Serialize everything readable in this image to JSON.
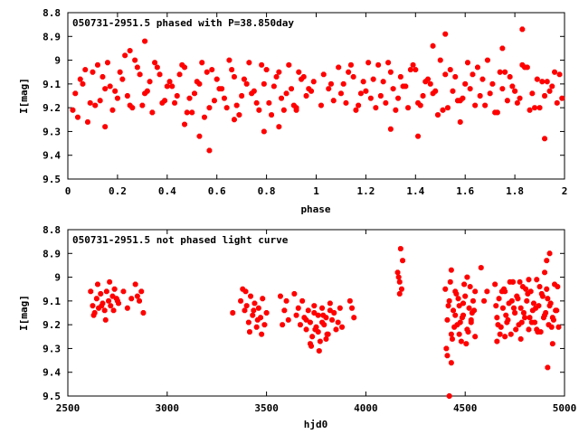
{
  "chart_data": [
    {
      "type": "scatter",
      "title": "050731-2951.5 phased with P=38.850day",
      "xlabel": "phase",
      "ylabel": "I[mag]",
      "xlim": [
        0,
        2
      ],
      "ylim": [
        8.8,
        9.5
      ],
      "y_inverted": true,
      "grid": false,
      "marker_color": "#ff0000",
      "x_ticks": [
        "0",
        "0.2",
        "0.4",
        "0.6",
        "0.8",
        "1",
        "1.2",
        "1.4",
        "1.6",
        "1.8",
        "2"
      ],
      "y_ticks": [
        "8.8",
        "8.9",
        "9",
        "9.1",
        "9.2",
        "9.3",
        "9.4",
        "9.5"
      ],
      "series": [
        {
          "x": [
            0.05,
            0.09,
            0.12,
            0.15,
            0.18,
            0.21,
            0.24,
            0.27,
            0.3,
            0.33,
            0.36,
            0.39,
            0.42,
            0.45,
            0.48,
            0.51,
            0.54,
            0.57,
            0.6,
            0.63,
            0.66,
            0.69,
            0.72,
            0.75,
            0.78,
            0.81,
            0.84,
            0.87,
            0.9,
            0.93,
            0.96,
            0.99,
            0.03,
            0.07,
            0.11,
            0.14,
            0.17,
            0.2,
            0.23,
            0.26,
            0.29,
            0.32,
            0.35,
            0.38,
            0.41,
            0.44,
            0.47,
            0.5,
            0.53,
            0.56,
            0.59,
            0.62,
            0.65,
            0.68,
            0.71,
            0.74,
            0.77,
            0.8,
            0.83,
            0.86,
            0.89,
            0.92,
            0.95,
            0.98,
            0.02,
            0.06,
            0.1,
            0.13,
            0.16,
            0.19,
            0.22,
            0.25,
            0.28,
            0.31,
            0.34,
            0.37,
            0.4,
            0.43,
            0.46,
            0.49,
            0.52,
            0.55,
            0.58,
            0.61,
            0.64,
            0.67,
            0.7,
            0.73,
            0.76,
            0.79,
            0.82,
            0.85,
            0.88,
            0.91,
            0.94,
            0.97,
            0.04,
            0.08,
            0.25,
            0.53,
            0.57,
            0.79,
            0.85,
            0.31,
            0.47,
            0.67,
            0.92,
            0.15
          ],
          "y": [
            9.08,
            9.18,
            9.02,
            9.12,
            9.21,
            9.05,
            9.15,
            9.0,
            9.19,
            9.09,
            9.03,
            9.17,
            9.11,
            9.06,
            9.22,
            9.14,
            9.01,
            9.2,
            9.08,
            9.16,
            9.04,
            9.23,
            9.1,
            9.13,
            9.02,
            9.18,
            9.07,
            9.21,
            9.12,
            9.05,
            9.15,
            9.09,
            9.14,
            9.04,
            9.19,
            9.07,
            9.11,
            9.16,
            8.98,
            9.2,
            9.06,
            9.13,
            9.01,
            9.18,
            9.09,
            9.15,
            9.03,
            9.22,
            9.1,
            9.05,
            9.17,
            9.12,
            9.0,
            9.19,
            9.08,
            9.14,
            9.21,
            9.04,
            9.11,
            9.16,
            9.02,
            9.2,
            9.07,
            9.13,
            9.21,
            9.1,
            9.05,
            9.17,
            9.01,
            9.13,
            9.08,
            9.19,
            9.03,
            9.14,
            9.22,
            9.06,
            9.11,
            9.18,
            9.02,
            9.16,
            9.09,
            9.24,
            9.04,
            9.12,
            9.2,
            9.07,
            9.15,
            9.01,
            9.18,
            9.1,
            9.23,
            9.05,
            9.14,
            9.19,
            9.08,
            9.12,
            9.24,
            9.26,
            8.96,
            9.32,
            9.38,
            9.3,
            9.28,
            8.92,
            9.27,
            9.25,
            9.21,
            9.28
          ]
        },
        {
          "x": [
            1.05,
            1.09,
            1.12,
            1.15,
            1.18,
            1.21,
            1.24,
            1.27,
            1.3,
            1.33,
            1.36,
            1.39,
            1.42,
            1.45,
            1.48,
            1.51,
            1.54,
            1.57,
            1.6,
            1.63,
            1.66,
            1.69,
            1.72,
            1.75,
            1.78,
            1.81,
            1.84,
            1.87,
            1.9,
            1.93,
            1.96,
            1.99,
            1.03,
            1.07,
            1.11,
            1.14,
            1.17,
            1.2,
            1.23,
            1.26,
            1.29,
            1.32,
            1.35,
            1.38,
            1.41,
            1.44,
            1.47,
            1.5,
            1.53,
            1.56,
            1.59,
            1.62,
            1.65,
            1.68,
            1.71,
            1.74,
            1.77,
            1.8,
            1.83,
            1.86,
            1.89,
            1.92,
            1.95,
            1.98,
            1.02,
            1.06,
            1.1,
            1.13,
            1.16,
            1.19,
            1.22,
            1.25,
            1.28,
            1.31,
            1.34,
            1.37,
            1.4,
            1.43,
            1.46,
            1.49,
            1.52,
            1.55,
            1.58,
            1.61,
            1.64,
            1.67,
            1.7,
            1.73,
            1.76,
            1.79,
            1.82,
            1.85,
            1.88,
            1.91,
            1.94,
            1.97,
            1.41,
            1.52,
            1.58,
            1.75,
            1.83,
            1.92,
            1.3,
            1.47
          ],
          "y": [
            9.12,
            9.03,
            9.18,
            9.07,
            9.14,
            9.01,
            9.2,
            9.09,
            9.05,
            9.16,
            9.11,
            9.02,
            9.19,
            9.08,
            9.13,
            9.21,
            9.04,
            9.17,
            9.1,
            9.06,
            9.15,
            9.0,
            9.22,
            9.12,
            9.07,
            9.18,
            9.03,
            9.14,
            9.2,
            9.09,
            9.05,
            9.16,
            9.06,
            9.17,
            9.1,
            9.02,
            9.19,
            9.13,
            9.08,
            9.15,
            9.01,
            9.21,
            9.11,
            9.04,
            9.18,
            9.09,
            9.14,
            9.0,
            9.2,
            9.07,
            9.16,
            9.12,
            9.03,
            9.19,
            9.1,
            9.05,
            9.17,
            9.13,
            9.02,
            9.21,
            9.08,
            9.15,
            9.11,
            9.06,
            9.19,
            9.1,
            9.14,
            9.05,
            9.21,
            9.09,
            9.16,
            9.02,
            9.18,
            9.12,
            9.07,
            9.2,
            9.04,
            9.15,
            9.1,
            9.23,
            9.06,
            9.13,
            9.17,
            9.01,
            9.19,
            9.08,
            9.14,
            9.22,
            9.05,
            9.11,
            9.16,
            9.03,
            9.2,
            9.09,
            9.13,
            9.18,
            9.32,
            8.89,
            9.26,
            8.95,
            8.87,
            9.33,
            9.29,
            8.94
          ]
        }
      ]
    },
    {
      "type": "scatter",
      "title": "050731-2951.5 not phased light curve",
      "xlabel": "hjd0",
      "ylabel": "I[mag]",
      "xlim": [
        2500,
        5000
      ],
      "ylim": [
        8.8,
        9.5
      ],
      "y_inverted": true,
      "grid": false,
      "marker_color": "#ff0000",
      "x_ticks": [
        "2500",
        "3000",
        "3500",
        "4000",
        "4500",
        "5000"
      ],
      "y_ticks": [
        "8.8",
        "8.9",
        "9",
        "9.1",
        "9.2",
        "9.3",
        "9.4",
        "9.5"
      ],
      "series": [
        {
          "x": [
            2615,
            2625,
            2635,
            2645,
            2655,
            2665,
            2675,
            2685,
            2695,
            2705,
            2715,
            2725,
            2735,
            2745,
            2755,
            2630,
            2650,
            2670,
            2690,
            2710,
            2730,
            2750,
            2780,
            2800,
            2820,
            2840,
            2860,
            2870,
            2880,
            2850,
            3330,
            3370,
            3380,
            3390,
            3400,
            3410,
            3420,
            3430,
            3440,
            3450,
            3460,
            3470,
            3480,
            3490,
            3500,
            3395,
            3415,
            3435,
            3455,
            3475,
            3570,
            3580,
            3590,
            3600,
            3610,
            3640,
            3650,
            3660,
            3670,
            3680,
            3690,
            3700,
            3710,
            3720,
            3730,
            3740,
            3750,
            3760,
            3770,
            3780,
            3790,
            3800,
            3810,
            3820,
            3830,
            3840,
            3850,
            3860,
            3870,
            3880,
            3700,
            3720,
            3740,
            3760,
            3780,
            3800,
            3820,
            3725,
            3745,
            3765,
            3785,
            3805,
            3920,
            3930,
            3940,
            4160,
            4170,
            4180,
            4175,
            4165,
            4185,
            4170
          ],
          "y": [
            9.06,
            9.12,
            9.15,
            9.09,
            9.13,
            9.07,
            9.11,
            9.14,
            9.06,
            9.1,
            9.12,
            9.08,
            9.05,
            9.09,
            9.11,
            9.16,
            9.03,
            9.12,
            9.18,
            9.02,
            9.14,
            9.1,
            9.06,
            9.13,
            9.09,
            9.03,
            9.1,
            9.06,
            9.15,
            9.08,
            9.15,
            9.1,
            9.05,
            9.14,
            9.12,
            9.19,
            9.08,
            9.16,
            9.11,
            9.21,
            9.13,
            9.17,
            9.09,
            9.2,
            9.15,
            9.06,
            9.23,
            9.14,
            9.18,
            9.24,
            9.08,
            9.2,
            9.14,
            9.1,
            9.18,
            9.07,
            9.16,
            9.13,
            9.2,
            9.1,
            9.17,
            9.22,
            9.14,
            9.19,
            9.25,
            9.12,
            9.21,
            9.16,
            9.27,
            9.13,
            9.2,
            9.17,
            9.24,
            9.11,
            9.18,
            9.15,
            9.22,
            9.19,
            9.13,
            9.21,
            9.18,
            9.28,
            9.15,
            9.23,
            9.19,
            9.26,
            9.14,
            9.29,
            9.22,
            9.31,
            9.16,
            9.24,
            9.1,
            9.13,
            9.17,
            8.98,
            9.02,
            9.05,
            8.88,
            9.0,
            8.93,
            9.07
          ]
        },
        {
          "x": [
            4400,
            4410,
            4420,
            4430,
            4440,
            4450,
            4460,
            4470,
            4480,
            4490,
            4500,
            4510,
            4520,
            4530,
            4540,
            4550,
            4405,
            4425,
            4445,
            4465,
            4485,
            4505,
            4525,
            4545,
            4415,
            4435,
            4455,
            4475,
            4495,
            4515,
            4535,
            4410,
            4430,
            4450,
            4470,
            4490,
            4510,
            4530,
            4550,
            4650,
            4660,
            4670,
            4680,
            4690,
            4700,
            4710,
            4720,
            4730,
            4740,
            4750,
            4760,
            4770,
            4780,
            4790,
            4800,
            4810,
            4820,
            4830,
            4840,
            4850,
            4860,
            4870,
            4880,
            4890,
            4900,
            4910,
            4920,
            4930,
            4940,
            4950,
            4960,
            4970,
            4655,
            4675,
            4695,
            4715,
            4735,
            4755,
            4775,
            4795,
            4815,
            4835,
            4855,
            4875,
            4895,
            4915,
            4935,
            4955,
            4665,
            4685,
            4705,
            4725,
            4745,
            4765,
            4785,
            4805,
            4825,
            4845,
            4865,
            4885,
            4905,
            4925,
            4945,
            4965,
            4660,
            4700,
            4740,
            4780,
            4820,
            4860,
            4900,
            4940,
            4580,
            4595,
            4610,
            4910,
            4420,
            4430,
            4915,
            4925
          ],
          "y": [
            9.05,
            9.18,
            9.1,
            9.24,
            9.14,
            9.06,
            9.2,
            9.12,
            9.27,
            9.16,
            9.08,
            9.22,
            9.13,
            9.19,
            9.1,
            9.25,
            9.3,
            9.02,
            9.21,
            9.09,
            9.17,
            9.28,
            9.04,
            9.14,
            9.12,
            9.26,
            9.07,
            9.19,
            9.03,
            9.23,
            9.15,
            9.33,
            8.97,
            9.16,
            9.24,
            9.11,
            9.0,
            9.18,
            9.06,
            9.03,
            9.17,
            9.09,
            9.21,
            9.13,
            9.06,
            9.19,
            9.11,
            9.24,
            9.02,
            9.15,
            9.08,
            9.2,
            9.13,
            9.04,
            9.17,
            9.1,
            9.22,
            9.06,
            9.14,
            9.19,
            9.01,
            9.12,
            9.23,
            9.08,
            9.16,
            9.05,
            9.2,
            9.11,
            9.17,
            9.03,
            9.14,
            9.21,
            9.12,
            9.24,
            9.05,
            9.18,
            9.1,
            9.22,
            9.02,
            9.15,
            9.07,
            9.19,
            9.13,
            9.04,
            9.17,
            9.09,
            9.21,
            9.14,
            9.2,
            9.06,
            9.16,
            9.02,
            9.13,
            9.09,
            9.19,
            9.05,
            9.17,
            9.11,
            9.23,
            9.07,
            9.15,
            9.12,
            9.18,
            9.04,
            9.27,
            9.25,
            9.02,
            9.26,
            9.01,
            9.22,
            8.98,
            9.28,
            8.96,
            9.1,
            9.06,
            8.93,
            9.5,
            9.36,
            9.38,
            8.9
          ]
        }
      ]
    }
  ]
}
